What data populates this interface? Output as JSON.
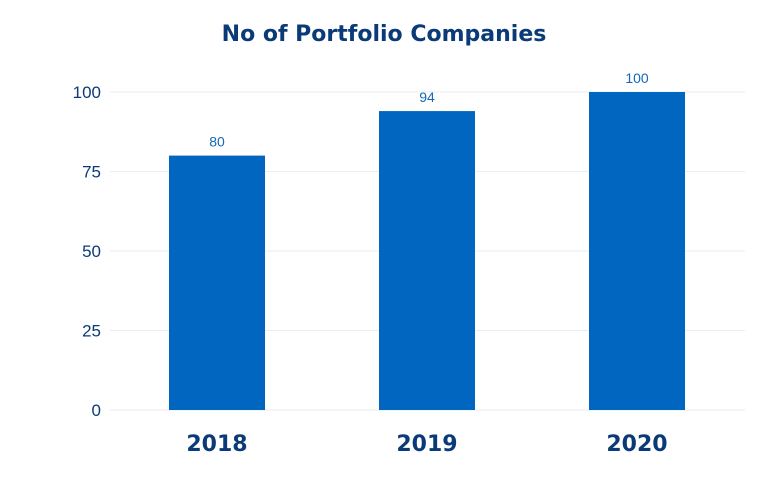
{
  "chart_data": {
    "type": "bar",
    "title": "No of Portfolio Companies",
    "categories": [
      "2018",
      "2019",
      "2020"
    ],
    "values": [
      80,
      94,
      100
    ],
    "data_labels": [
      "80",
      "94",
      "100"
    ],
    "y_ticks": [
      "0",
      "25",
      "50",
      "75",
      "100"
    ],
    "ylim": [
      0,
      100
    ],
    "xlabel": "",
    "ylabel": "",
    "grid": true,
    "legend": "none",
    "colors": {
      "bar": "#0066bf",
      "title": "#0b3a78",
      "axis_text": "#0b3a78",
      "data_label": "#1667b8",
      "grid": "#e6eef6"
    }
  }
}
